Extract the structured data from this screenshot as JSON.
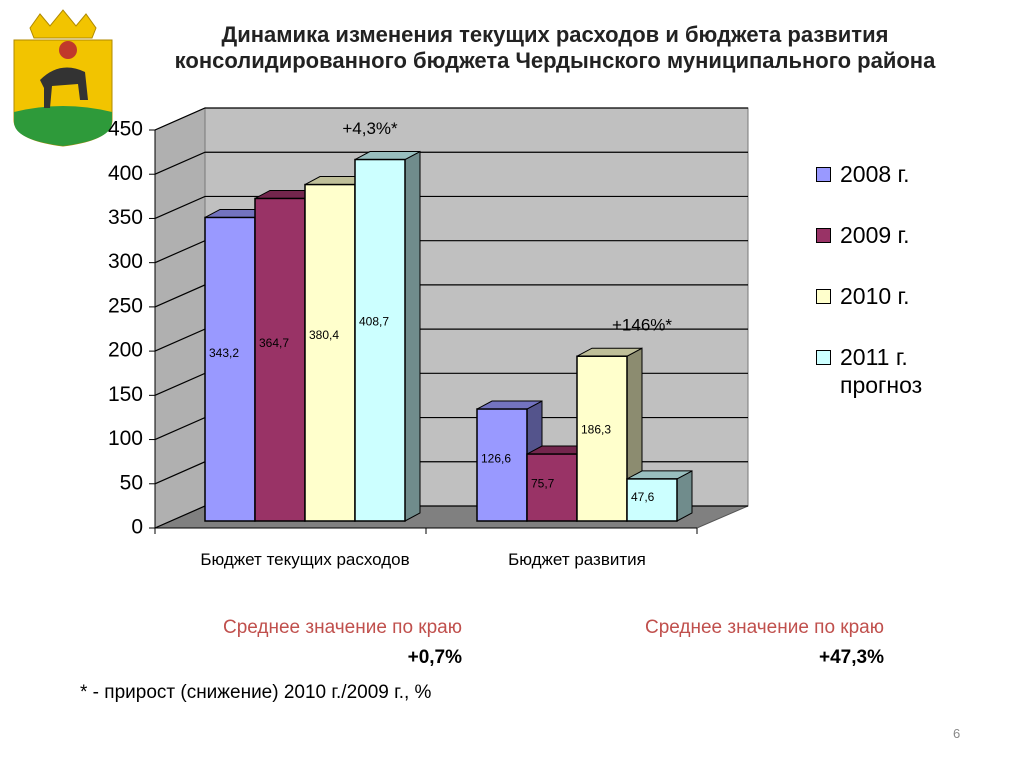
{
  "chart_data": {
    "type": "bar3d",
    "title": "Динамика изменения текущих расходов и бюджета развития консолидированного бюджета Чердынского муниципального района",
    "categories": [
      "Бюджет текущих расходов",
      "Бюджет развития"
    ],
    "series": [
      {
        "name": "2008 г.",
        "color": "#9999ff",
        "values": [
          343.2,
          126.6
        ],
        "value_labels": [
          "343,2",
          "126,6"
        ]
      },
      {
        "name": "2009 г.",
        "color": "#993366",
        "values": [
          364.7,
          75.7
        ],
        "value_labels": [
          "364,7",
          "75,7"
        ]
      },
      {
        "name": "2010 г.",
        "color": "#ffffcc",
        "values": [
          380.4,
          186.3
        ],
        "value_labels": [
          "380,4",
          "186,3"
        ]
      },
      {
        "name": "2011 г. прогноз",
        "color": "#ccffff",
        "values": [
          408.7,
          47.6
        ],
        "value_labels": [
          "408,7",
          "47,6"
        ]
      }
    ],
    "annotations": [
      "+4,3%*",
      "+146%*"
    ],
    "ylim": [
      0,
      450
    ],
    "yticks": [
      0,
      50,
      100,
      150,
      200,
      250,
      300,
      350,
      400,
      450
    ],
    "grid": true
  },
  "regional_average": [
    {
      "label": "Среднее значение по краю",
      "value": "+0,7%"
    },
    {
      "label": "Среднее значение по краю",
      "value": "+47,3%"
    }
  ],
  "footnote": "* - прирост (снижение) 2010 г./2009 г., %",
  "page_number": "6"
}
